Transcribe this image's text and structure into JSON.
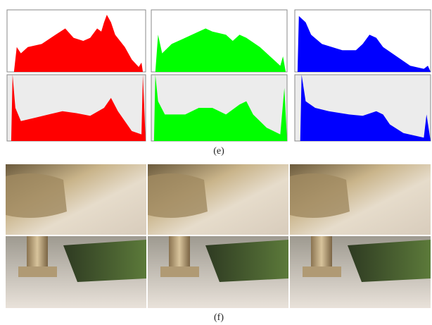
{
  "figure": {
    "panels": [
      {
        "label": "(e)"
      },
      {
        "label": "(f)"
      }
    ]
  }
}
